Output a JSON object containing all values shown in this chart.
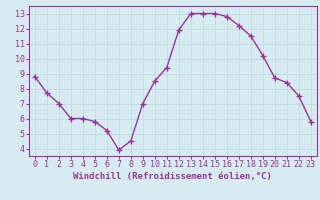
{
  "x": [
    0,
    1,
    2,
    3,
    4,
    5,
    6,
    7,
    8,
    9,
    10,
    11,
    12,
    13,
    14,
    15,
    16,
    17,
    18,
    19,
    20,
    21,
    22,
    23
  ],
  "y": [
    8.8,
    7.7,
    7.0,
    6.0,
    6.0,
    5.8,
    5.2,
    3.9,
    4.5,
    7.0,
    8.5,
    9.4,
    11.9,
    13.0,
    13.0,
    13.0,
    12.8,
    12.2,
    11.5,
    10.2,
    8.7,
    8.4,
    7.5,
    5.8
  ],
  "line_color": "#993399",
  "marker": "+",
  "markersize": 4,
  "linewidth": 1.0,
  "xlabel": "Windchill (Refroidissement éolien,°C)",
  "xlim": [
    -0.5,
    23.5
  ],
  "ylim": [
    3.5,
    13.5
  ],
  "yticks": [
    4,
    5,
    6,
    7,
    8,
    9,
    10,
    11,
    12,
    13
  ],
  "xticks": [
    0,
    1,
    2,
    3,
    4,
    5,
    6,
    7,
    8,
    9,
    10,
    11,
    12,
    13,
    14,
    15,
    16,
    17,
    18,
    19,
    20,
    21,
    22,
    23
  ],
  "background_color": "#d6ecf0",
  "grid_color": "#b8d8e0",
  "tick_color": "#993399",
  "label_color": "#993399",
  "xlabel_fontsize": 6.5,
  "tick_fontsize": 6.0
}
